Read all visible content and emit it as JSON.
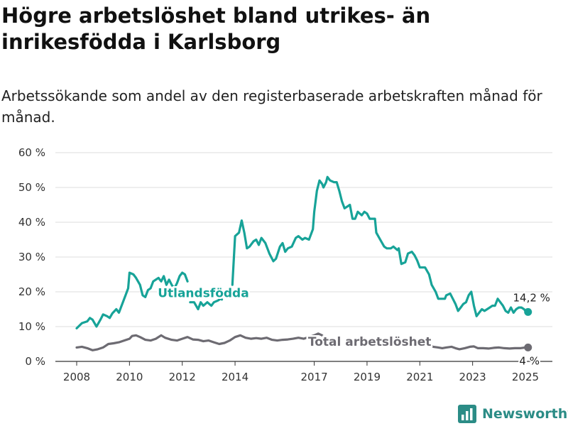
{
  "title": "Högre arbetslöshet bland utrikes- än inrikesfödda i Karlsborg",
  "subtitle": "Arbetssökande som andel av den registerbaserade arbetskraften månad för månad.",
  "brand": {
    "name": "Newsworthy",
    "logo_icon": "bar-chart-logo-icon",
    "color": "#2b8c86"
  },
  "chart_data": {
    "type": "line",
    "ylim": [
      0,
      60
    ],
    "yticks": [
      {
        "value": 0,
        "label": "0 %"
      },
      {
        "value": 10,
        "label": "10 %"
      },
      {
        "value": 20,
        "label": "20 %"
      },
      {
        "value": 30,
        "label": "30 %"
      },
      {
        "value": 40,
        "label": "40 %"
      },
      {
        "value": 50,
        "label": "50 %"
      },
      {
        "value": 60,
        "label": "60 %"
      }
    ],
    "xlim": [
      2007.5,
      2025.6
    ],
    "xticks": [
      {
        "value": 2008,
        "label": "2008"
      },
      {
        "value": 2010,
        "label": "2010"
      },
      {
        "value": 2012,
        "label": "2012"
      },
      {
        "value": 2014,
        "label": "2014"
      },
      {
        "value": 2017,
        "label": "2017"
      },
      {
        "value": 2019,
        "label": "2019"
      },
      {
        "value": 2021,
        "label": "2021"
      },
      {
        "value": 2023,
        "label": "2023"
      },
      {
        "value": 2025,
        "label": "2025"
      }
    ],
    "grid": true,
    "series": [
      {
        "name": "Utlandsfödda",
        "color": "#17a398",
        "end_label": "14,2 %",
        "segments": [
          [
            [
              2008.0,
              9.5
            ],
            [
              2008.2,
              11
            ],
            [
              2008.4,
              11.5
            ],
            [
              2008.5,
              12.5
            ],
            [
              2008.6,
              12
            ],
            [
              2008.75,
              10
            ],
            [
              2008.9,
              12
            ],
            [
              2009.0,
              13.5
            ],
            [
              2009.15,
              13
            ],
            [
              2009.25,
              12.5
            ],
            [
              2009.35,
              13.8
            ],
            [
              2009.5,
              15
            ],
            [
              2009.6,
              14
            ],
            [
              2009.75,
              17
            ],
            [
              2009.85,
              19
            ],
            [
              2009.95,
              21
            ],
            [
              2010.0,
              25.5
            ],
            [
              2010.15,
              25
            ],
            [
              2010.25,
              24
            ],
            [
              2010.4,
              22
            ],
            [
              2010.5,
              19
            ],
            [
              2010.6,
              18.5
            ],
            [
              2010.7,
              20.5
            ],
            [
              2010.8,
              21
            ],
            [
              2010.9,
              23
            ],
            [
              2011.0,
              23.5
            ],
            [
              2011.1,
              24
            ],
            [
              2011.2,
              23
            ],
            [
              2011.3,
              24.5
            ],
            [
              2011.4,
              22
            ],
            [
              2011.5,
              23.5
            ],
            [
              2011.6,
              22
            ],
            [
              2011.7,
              21
            ],
            [
              2011.8,
              22.5
            ],
            [
              2011.9,
              24.5
            ],
            [
              2012.0,
              25.5
            ],
            [
              2012.1,
              25
            ],
            [
              2012.2,
              23
            ]
          ],
          [
            [
              2012.3,
              17
            ],
            [
              2012.45,
              17
            ],
            [
              2012.6,
              15
            ],
            [
              2012.7,
              17
            ],
            [
              2012.8,
              16
            ],
            [
              2012.95,
              17
            ],
            [
              2013.1,
              16
            ],
            [
              2013.2,
              17
            ],
            [
              2013.35,
              17.5
            ],
            [
              2013.45,
              18
            ],
            [
              2013.5,
              17.8
            ]
          ],
          [
            [
              2013.9,
              22
            ],
            [
              2014.0,
              36
            ],
            [
              2014.15,
              37
            ],
            [
              2014.25,
              40.5
            ],
            [
              2014.35,
              37
            ],
            [
              2014.45,
              32.5
            ],
            [
              2014.55,
              33
            ],
            [
              2014.7,
              34.5
            ],
            [
              2014.8,
              35
            ],
            [
              2014.9,
              33.5
            ],
            [
              2015.0,
              35.5
            ],
            [
              2015.15,
              34
            ],
            [
              2015.3,
              31
            ],
            [
              2015.45,
              28.8
            ],
            [
              2015.55,
              29.5
            ],
            [
              2015.7,
              33
            ],
            [
              2015.8,
              34
            ],
            [
              2015.9,
              31.5
            ],
            [
              2016.0,
              32.5
            ],
            [
              2016.15,
              33
            ],
            [
              2016.3,
              35.5
            ],
            [
              2016.4,
              36
            ],
            [
              2016.55,
              35
            ],
            [
              2016.65,
              35.5
            ],
            [
              2016.8,
              35
            ],
            [
              2016.95,
              38
            ],
            [
              2017.0,
              43
            ],
            [
              2017.1,
              49
            ],
            [
              2017.2,
              52
            ],
            [
              2017.3,
              51
            ],
            [
              2017.35,
              50
            ],
            [
              2017.45,
              51.5
            ],
            [
              2017.5,
              53
            ],
            [
              2017.6,
              52
            ],
            [
              2017.75,
              51.5
            ],
            [
              2017.85,
              51.5
            ],
            [
              2017.95,
              49
            ],
            [
              2018.05,
              46
            ],
            [
              2018.15,
              44
            ],
            [
              2018.25,
              44.5
            ],
            [
              2018.35,
              45
            ],
            [
              2018.45,
              41
            ],
            [
              2018.55,
              41
            ],
            [
              2018.65,
              43
            ],
            [
              2018.8,
              42
            ],
            [
              2018.9,
              43
            ],
            [
              2019.0,
              42.5
            ],
            [
              2019.1,
              41
            ],
            [
              2019.2,
              41
            ],
            [
              2019.3,
              41
            ],
            [
              2019.35,
              37
            ],
            [
              2019.5,
              35
            ],
            [
              2019.65,
              33
            ],
            [
              2019.75,
              32.5
            ],
            [
              2019.9,
              32.5
            ],
            [
              2020.0,
              33
            ],
            [
              2020.15,
              32
            ],
            [
              2020.2,
              32.5
            ],
            [
              2020.3,
              28
            ],
            [
              2020.45,
              28.5
            ],
            [
              2020.55,
              31
            ],
            [
              2020.7,
              31.5
            ],
            [
              2020.8,
              30.5
            ],
            [
              2020.9,
              29
            ],
            [
              2021.0,
              27
            ],
            [
              2021.2,
              27
            ],
            [
              2021.35,
              25
            ],
            [
              2021.45,
              22
            ],
            [
              2021.6,
              20
            ],
            [
              2021.7,
              18
            ],
            [
              2021.8,
              18
            ],
            [
              2021.95,
              18
            ],
            [
              2022.0,
              19
            ],
            [
              2022.15,
              19.5
            ],
            [
              2022.25,
              18
            ],
            [
              2022.35,
              16.5
            ],
            [
              2022.45,
              14.5
            ],
            [
              2022.55,
              15.5
            ],
            [
              2022.65,
              16.5
            ],
            [
              2022.75,
              17
            ],
            [
              2022.85,
              19
            ],
            [
              2022.95,
              20
            ],
            [
              2023.05,
              16
            ],
            [
              2023.15,
              13
            ],
            [
              2023.25,
              14
            ],
            [
              2023.35,
              15
            ],
            [
              2023.45,
              14.5
            ],
            [
              2023.55,
              15
            ],
            [
              2023.65,
              15.5
            ],
            [
              2023.75,
              16
            ],
            [
              2023.85,
              16
            ],
            [
              2023.95,
              18
            ],
            [
              2024.05,
              17
            ],
            [
              2024.15,
              16
            ],
            [
              2024.25,
              14.5
            ],
            [
              2024.35,
              14
            ],
            [
              2024.45,
              15.5
            ],
            [
              2024.55,
              14
            ],
            [
              2024.65,
              15
            ],
            [
              2024.75,
              15.5
            ],
            [
              2024.85,
              15.5
            ],
            [
              2024.95,
              15
            ],
            [
              2025.0,
              14.5
            ],
            [
              2025.1,
              14.2
            ]
          ]
        ]
      },
      {
        "name": "Total arbetslöshet",
        "color": "#6d6b72",
        "end_label": "4 %",
        "segments": [
          [
            [
              2008.0,
              4
            ],
            [
              2008.2,
              4.2
            ],
            [
              2008.4,
              3.8
            ],
            [
              2008.6,
              3.2
            ],
            [
              2008.8,
              3.5
            ],
            [
              2009.0,
              4
            ],
            [
              2009.2,
              5
            ],
            [
              2009.4,
              5.2
            ],
            [
              2009.6,
              5.5
            ],
            [
              2009.8,
              6
            ],
            [
              2010.0,
              6.5
            ],
            [
              2010.1,
              7.3
            ],
            [
              2010.25,
              7.5
            ],
            [
              2010.4,
              7
            ],
            [
              2010.6,
              6.2
            ],
            [
              2010.8,
              6
            ],
            [
              2011.0,
              6.5
            ],
            [
              2011.2,
              7.5
            ],
            [
              2011.35,
              6.8
            ],
            [
              2011.6,
              6.2
            ],
            [
              2011.8,
              6
            ],
            [
              2012.0,
              6.5
            ],
            [
              2012.2,
              7
            ],
            [
              2012.4,
              6.3
            ],
            [
              2012.6,
              6.2
            ],
            [
              2012.8,
              5.8
            ],
            [
              2013.0,
              6
            ],
            [
              2013.2,
              5.5
            ],
            [
              2013.4,
              5
            ],
            [
              2013.6,
              5.3
            ],
            [
              2013.8,
              6
            ],
            [
              2014.0,
              7
            ],
            [
              2014.2,
              7.5
            ],
            [
              2014.4,
              6.8
            ],
            [
              2014.6,
              6.5
            ],
            [
              2014.8,
              6.7
            ],
            [
              2015.0,
              6.5
            ],
            [
              2015.2,
              6.8
            ],
            [
              2015.4,
              6.2
            ],
            [
              2015.6,
              6
            ],
            [
              2015.8,
              6.2
            ],
            [
              2016.0,
              6.3
            ],
            [
              2016.2,
              6.5
            ],
            [
              2016.4,
              6.8
            ],
            [
              2016.6,
              6.5
            ],
            [
              2016.8,
              7
            ],
            [
              2017.0,
              7.5
            ],
            [
              2017.15,
              8
            ],
            [
              2017.3,
              7.5
            ]
          ],
          [
            [
              2021.35,
              4.8
            ],
            [
              2021.5,
              4.2
            ],
            [
              2021.7,
              4
            ],
            [
              2021.85,
              3.8
            ],
            [
              2022.0,
              4
            ],
            [
              2022.2,
              4.2
            ],
            [
              2022.35,
              3.8
            ],
            [
              2022.5,
              3.5
            ],
            [
              2022.7,
              3.8
            ],
            [
              2022.9,
              4.2
            ],
            [
              2023.05,
              4.3
            ],
            [
              2023.2,
              3.8
            ],
            [
              2023.4,
              3.8
            ],
            [
              2023.6,
              3.7
            ],
            [
              2023.8,
              3.9
            ],
            [
              2024.0,
              4
            ],
            [
              2024.2,
              3.8
            ],
            [
              2024.4,
              3.7
            ],
            [
              2024.6,
              3.8
            ],
            [
              2024.8,
              3.8
            ],
            [
              2025.0,
              4
            ],
            [
              2025.1,
              4
            ]
          ]
        ]
      }
    ],
    "annotations": [
      {
        "text": "Utlandsfödda",
        "series": 0
      },
      {
        "text": "Total arbetslöshet",
        "series": 1
      }
    ]
  }
}
